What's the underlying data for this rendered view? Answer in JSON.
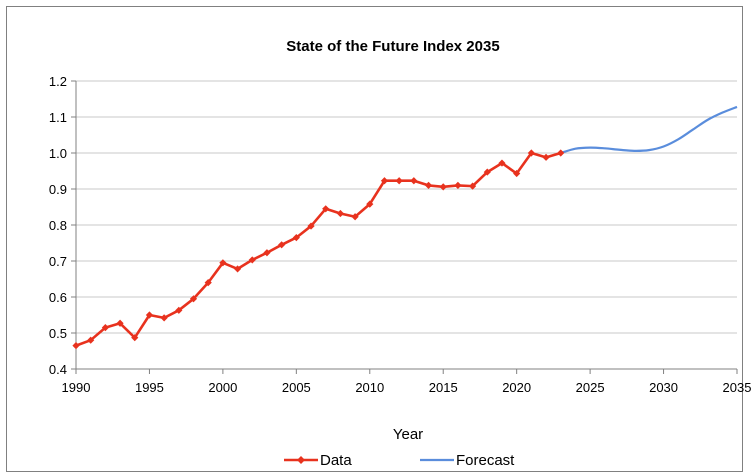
{
  "chart_data": {
    "type": "line",
    "title": "State of the Future Index 2035",
    "xlabel": "Year",
    "ylabel": "",
    "xlim": [
      1990,
      2035
    ],
    "ylim": [
      0.4,
      1.2
    ],
    "x_ticks": [
      "1990",
      "1995",
      "2000",
      "2005",
      "2010",
      "2015",
      "2020",
      "2025",
      "2030",
      "2035"
    ],
    "y_ticks": [
      "0.4",
      "0.5",
      "0.6",
      "0.7",
      "0.8",
      "0.9",
      "1.0",
      "1.1",
      "1.2"
    ],
    "grid": "horizontal",
    "legend_position": "bottom",
    "series": [
      {
        "name": "Data",
        "color": "#e8321e",
        "marker": "diamond",
        "x": [
          1990,
          1991,
          1992,
          1993,
          1994,
          1995,
          1996,
          1997,
          1998,
          1999,
          2000,
          2001,
          2002,
          2003,
          2004,
          2005,
          2006,
          2007,
          2008,
          2009,
          2010,
          2011,
          2012,
          2013,
          2014,
          2015,
          2016,
          2017,
          2018,
          2019,
          2020,
          2021,
          2022,
          2023
        ],
        "values": [
          0.465,
          0.48,
          0.515,
          0.527,
          0.487,
          0.55,
          0.542,
          0.563,
          0.595,
          0.64,
          0.695,
          0.678,
          0.703,
          0.723,
          0.745,
          0.765,
          0.797,
          0.845,
          0.832,
          0.823,
          0.858,
          0.923,
          0.923,
          0.923,
          0.91,
          0.906,
          0.91,
          0.908,
          0.947,
          0.972,
          0.943,
          1.0,
          0.988,
          1.0
        ]
      },
      {
        "name": "Forecast",
        "color": "#5a8ddc",
        "marker": "none",
        "x": [
          2023,
          2024,
          2025,
          2026,
          2027,
          2028,
          2029,
          2030,
          2031,
          2032,
          2033,
          2034,
          2035
        ],
        "values": [
          1.0,
          1.012,
          1.015,
          1.013,
          1.009,
          1.006,
          1.008,
          1.018,
          1.038,
          1.065,
          1.092,
          1.112,
          1.128
        ]
      }
    ]
  }
}
